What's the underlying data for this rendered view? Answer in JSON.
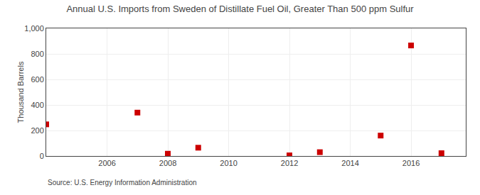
{
  "chart_data": {
    "type": "scatter",
    "title": "Annual U.S. Imports from Sweden of Distillate Fuel Oil, Greater Than 500 ppm Sulfur",
    "ylabel": "Thousand Barrels",
    "annotations": [
      "Source: U.S. Energy Information Administration"
    ],
    "x": [
      2004,
      2007,
      2008,
      2009,
      2012,
      2013,
      2015,
      2016,
      2017
    ],
    "values": [
      248,
      340,
      18,
      65,
      5,
      30,
      160,
      866,
      22
    ],
    "color": "#cc0000",
    "marker": "square",
    "xlim": [
      2004.0,
      2017.8
    ],
    "xticks": [
      2006,
      2008,
      2010,
      2012,
      2014,
      2016
    ],
    "ylim": [
      0,
      1000
    ],
    "yticks": [
      0,
      200,
      400,
      600,
      800,
      {
        "value": 1000,
        "label": "1,000"
      }
    ],
    "grid": true
  }
}
